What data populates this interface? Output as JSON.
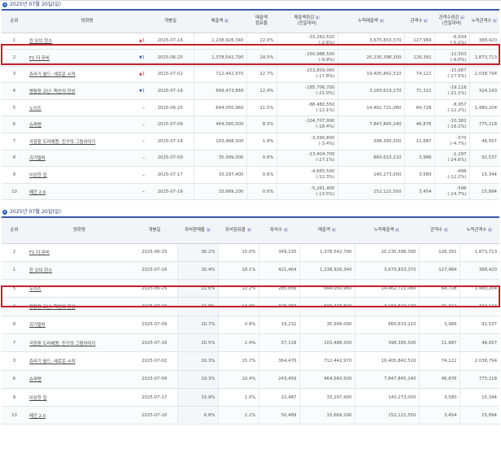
{
  "section1": {
    "title": "2025년 07월 20일(일)",
    "headers": {
      "rank": "순위",
      "title": "영화명",
      "open": "개봉일",
      "sales": "매출액",
      "sales_share": [
        "매출액",
        "점유율"
      ],
      "sales_change": [
        "매출액증감",
        "(전일대비)"
      ],
      "cum_sales": "누적매출액",
      "audience": "관객수",
      "aud_change": [
        "관객수증감",
        "(전일대비)"
      ],
      "cum_aud": "누적관객수"
    },
    "rows": [
      {
        "rank": "1",
        "title": "킹 오브 킹스",
        "chg": "▲1",
        "dir": "up",
        "open": "2025-07-16",
        "sales": "1,238,926,340",
        "share": "22.0%",
        "sc1": "-33,282,620",
        "sc2": "(-2.6%)",
        "cum": "3,675,833,370",
        "aud": "127,984",
        "ac1": "-6,934",
        "ac2": "(-5.1%)",
        "cumaud": "388,420"
      },
      {
        "rank": "2",
        "title": "F1 더 무비",
        "chg": "▼1",
        "dir": "down",
        "open": "2025-06-25",
        "sales": "1,378,542,790",
        "share": "24.5%",
        "sc1": "-150,988,500",
        "sc2": "(-9.9%)",
        "cum": "20,230,398,300",
        "aud": "126,391",
        "ac1": "-12,503",
        "ac2": "(-9.0%)",
        "cumaud": "1,873,713"
      },
      {
        "rank": "3",
        "title": "쥬라기 월드: 새로운 시작",
        "chg": "▲1",
        "dir": "up",
        "open": "2025-07-02",
        "sales": "712,442,970",
        "share": "12.7%",
        "sc1": "-153,859,060",
        "sc2": "(-17.8%)",
        "cum": "19,405,842,510",
        "aud": "74,122",
        "ac1": "-15,687",
        "ac2": "(-17.5%)",
        "cumaud": "2,038,794"
      },
      {
        "rank": "4",
        "title": "명탐정 코난: 척안의 잔상",
        "chg": "▼1",
        "dir": "down",
        "open": "2025-07-16",
        "sales": "699,473,840",
        "share": "12.4%",
        "sc1": "-185,706,700",
        "sc2": "(-21.0%)",
        "cum": "3,183,619,170",
        "aud": "71,322",
        "ac1": "-19,116",
        "ac2": "(-21.1%)",
        "cumaud": "324,143"
      },
      {
        "rank": "5",
        "title": "노이즈",
        "chg": "–",
        "dir": "same",
        "open": "2025-06-25",
        "sales": "644,050,960",
        "share": "11.5%",
        "sc1": "-88,480,550",
        "sc2": "(-12.1%)",
        "cum": "14,462,721,060",
        "aud": "64,728",
        "ac1": "-8,957",
        "ac2": "(-12.2%)",
        "cumaud": "1,480,204"
      },
      {
        "rank": "6",
        "title": "슈퍼맨",
        "chg": "–",
        "dir": "same",
        "open": "2025-07-09",
        "sales": "464,560,500",
        "share": "8.3%",
        "sc1": "-104,707,990",
        "sc2": "(-18.4%)",
        "cum": "7,847,845,240",
        "aud": "46,876",
        "ac1": "-10,382",
        "ac2": "(-18.1%)",
        "cumaud": "775,218"
      },
      {
        "rank": "7",
        "title": "극장판 도라에몽: 진구의 그림이야기",
        "chg": "–",
        "dir": "same",
        "open": "2025-07-16",
        "sales": "103,488,300",
        "share": "1.8%",
        "sc1": "-3,590,800",
        "sc2": "(-3.4%)",
        "cum": "398,395,500",
        "aud": "11,687",
        "ac1": "-570",
        "ac2": "(-4.7%)",
        "cumaud": "48,057"
      },
      {
        "rank": "8",
        "title": "괴기열차",
        "chg": "–",
        "dir": "same",
        "open": "2025-07-09",
        "sales": "35,999,000",
        "share": "0.6%",
        "sc1": "-13,404,700",
        "sc2": "(-27.1%)",
        "cum": "860,633,210",
        "aud": "3,986",
        "ac1": "-1,297",
        "ac2": "(-24.6%)",
        "cumaud": "92,537"
      },
      {
        "rank": "9",
        "title": "이상한 집",
        "chg": "–",
        "dir": "same",
        "open": "2025-07-17",
        "sales": "33,297,400",
        "share": "0.6%",
        "sc1": "-4,665,500",
        "sc2": "(-12.3%)",
        "cum": "140,273,000",
        "aud": "3,580",
        "ac1": "-496",
        "ac2": "(-12.2%)",
        "cumaud": "15,344"
      },
      {
        "rank": "10",
        "title": "메간 2.0",
        "chg": "–",
        "dir": "same",
        "open": "2025-07-16",
        "sales": "33,669,200",
        "share": "0.6%",
        "sc1": "-5,261,400",
        "sc2": "(-13.5%)",
        "cum": "152,121,550",
        "aud": "3,454",
        "ac1": "-596",
        "ac2": "(-14.7%)",
        "cumaud": "15,894"
      }
    ]
  },
  "section2": {
    "title": "2025년 07월 20일(일)",
    "headers": {
      "rank": "순위",
      "title": "영화명",
      "open": "개봉일",
      "seat_sales": "좌석판매율",
      "seat_share": "좌석점유율",
      "seats": "좌석수",
      "sales": "매출액",
      "cum_sales": "누적매출액",
      "audience": "관객수",
      "cum_aud": "누적관객수"
    },
    "rows": [
      {
        "rank": "2",
        "title": "F1 더 무비",
        "open": "2025-06-25",
        "ssr": "36.2%",
        "ssh": "15.0%",
        "seats": "349,230",
        "sales": "1,378,542,790",
        "cum": "20,230,398,300",
        "aud": "126,391",
        "cumaud": "1,873,713"
      },
      {
        "rank": "1",
        "title": "킹 오브 킹스",
        "open": "2025-07-16",
        "ssr": "30.4%",
        "ssh": "18.1%",
        "seats": "421,464",
        "sales": "1,238,926,340",
        "cum": "3,675,833,370",
        "aud": "127,984",
        "cumaud": "388,420"
      },
      {
        "rank": "5",
        "title": "노이즈",
        "open": "2025-06-25",
        "ssr": "22.6%",
        "ssh": "12.2%",
        "seats": "285,856",
        "sales": "644,050,960",
        "cum": "14,462,721,060",
        "aud": "64,728",
        "cumaud": "1,480,204"
      },
      {
        "rank": "4",
        "title": "명탐정 코난: 척안의 잔상",
        "open": "2025-07-16",
        "ssr": "21.9%",
        "ssh": "14.0%",
        "seats": "325,383",
        "sales": "699,473,840",
        "cum": "3,183,619,170",
        "aud": "71,322",
        "cumaud": "324,143"
      },
      {
        "rank": "8",
        "title": "괴기열차",
        "open": "2025-07-09",
        "ssr": "20.7%",
        "ssh": "0.8%",
        "seats": "19,232",
        "sales": "35,999,000",
        "cum": "860,633,210",
        "aud": "3,986",
        "cumaud": "92,537"
      },
      {
        "rank": "7",
        "title": "극장판 도라에몽: 진구의 그림이야기",
        "open": "2025-07-16",
        "ssr": "20.5%",
        "ssh": "2.4%",
        "seats": "57,118",
        "sales": "103,488,300",
        "cum": "398,395,500",
        "aud": "11,687",
        "cumaud": "48,057"
      },
      {
        "rank": "3",
        "title": "쥬라기 월드: 새로운 시작",
        "open": "2025-07-02",
        "ssr": "20.3%",
        "ssh": "15.7%",
        "seats": "364,476",
        "sales": "712,442,970",
        "cum": "19,405,842,510",
        "aud": "74,122",
        "cumaud": "2,038,794"
      },
      {
        "rank": "6",
        "title": "슈퍼맨",
        "open": "2025-07-09",
        "ssr": "19.3%",
        "ssh": "10.4%",
        "seats": "243,459",
        "sales": "464,560,500",
        "cum": "7,847,845,240",
        "aud": "46,876",
        "cumaud": "775,218"
      },
      {
        "rank": "9",
        "title": "이상한 집",
        "open": "2025-07-17",
        "ssr": "15.9%",
        "ssh": "1.0%",
        "seats": "22,487",
        "sales": "33,297,400",
        "cum": "140,273,000",
        "aud": "3,580",
        "cumaud": "15,344"
      },
      {
        "rank": "10",
        "title": "메간 2.0",
        "open": "2025-07-16",
        "ssr": "6.8%",
        "ssh": "2.2%",
        "seats": "50,489",
        "sales": "33,669,200",
        "cum": "152,121,550",
        "aud": "3,454",
        "cumaud": "15,894"
      }
    ]
  },
  "colors": {
    "accent": "#3b5aa8",
    "highlight": "#c0202a",
    "up": "#d02b2b",
    "down": "#2b63b5"
  }
}
